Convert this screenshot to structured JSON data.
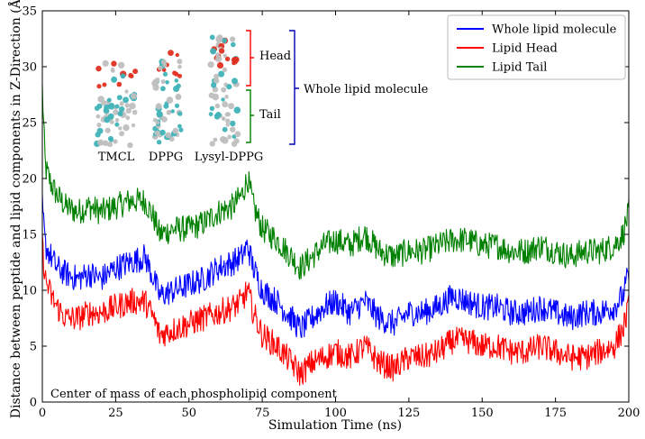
{
  "chart_data": {
    "type": "line",
    "title": "",
    "xlabel": "Simulation Time (ns)",
    "ylabel": "Distance between peptide and lipid components in Z-Direction (Å)",
    "xlim": [
      0,
      200
    ],
    "ylim": [
      0,
      35
    ],
    "xticks": [
      0,
      25,
      50,
      75,
      100,
      125,
      150,
      175,
      200
    ],
    "yticks": [
      0,
      5,
      10,
      15,
      20,
      25,
      30,
      35
    ],
    "legend_position": "top-right",
    "annotation": "Center of mass of each phospholipid component",
    "series": [
      {
        "name": "Whole lipid molecule",
        "color": "#0000ff",
        "x": [
          0,
          1,
          3,
          5,
          8,
          12,
          16,
          20,
          25,
          30,
          35,
          38,
          40,
          45,
          50,
          55,
          60,
          65,
          68,
          70,
          72,
          75,
          80,
          85,
          88,
          92,
          96,
          100,
          105,
          110,
          115,
          120,
          125,
          130,
          135,
          140,
          145,
          150,
          155,
          160,
          165,
          170,
          175,
          180,
          185,
          190,
          195,
          198,
          200
        ],
        "values": [
          17.5,
          14,
          13,
          12,
          11.5,
          11,
          11.5,
          11,
          12,
          12.5,
          13,
          11,
          9.5,
          10,
          10.5,
          11,
          12,
          12.5,
          13,
          14,
          12,
          10,
          9,
          7.5,
          6.5,
          7.5,
          8.5,
          9,
          8,
          9,
          7.5,
          7,
          8,
          8,
          8.5,
          9.5,
          9,
          8.5,
          8.5,
          8,
          8,
          8.5,
          8,
          7.5,
          8,
          8,
          8.5,
          9.5,
          11.5
        ]
      },
      {
        "name": "Lipid Head",
        "color": "#ff0000",
        "x": [
          0,
          1,
          3,
          5,
          8,
          12,
          16,
          20,
          25,
          30,
          35,
          38,
          40,
          45,
          50,
          55,
          60,
          65,
          68,
          70,
          72,
          75,
          80,
          85,
          88,
          92,
          96,
          100,
          105,
          110,
          115,
          120,
          125,
          130,
          135,
          140,
          145,
          150,
          155,
          160,
          165,
          170,
          175,
          180,
          185,
          190,
          195,
          198,
          200
        ],
        "values": [
          14,
          11,
          9.5,
          8.5,
          7.5,
          7.5,
          8,
          8,
          8.5,
          9,
          9,
          7.5,
          6,
          6.5,
          7,
          7.5,
          8,
          8.5,
          9,
          10,
          8,
          6,
          5,
          3.5,
          2.5,
          3.5,
          4,
          4.5,
          4,
          5,
          3.5,
          3,
          4,
          4,
          4.5,
          5.5,
          5.5,
          5,
          5,
          4.5,
          4.5,
          5,
          4.5,
          4,
          4,
          4.5,
          5,
          6.5,
          8.5
        ]
      },
      {
        "name": "Lipid Tail",
        "color": "#008000",
        "x": [
          0,
          1,
          3,
          5,
          8,
          12,
          16,
          20,
          25,
          30,
          35,
          38,
          40,
          45,
          50,
          55,
          60,
          65,
          68,
          70,
          72,
          75,
          80,
          85,
          88,
          92,
          96,
          100,
          105,
          110,
          115,
          120,
          125,
          130,
          135,
          140,
          145,
          150,
          155,
          160,
          165,
          170,
          175,
          180,
          185,
          190,
          195,
          198,
          200
        ],
        "values": [
          28,
          21,
          19.5,
          18.5,
          17.5,
          17,
          17.5,
          17,
          17.5,
          18,
          18,
          16.5,
          15,
          15.5,
          15.5,
          16,
          17,
          17.5,
          18.5,
          20,
          17.5,
          15.5,
          14.5,
          13,
          12,
          13,
          14,
          14.5,
          14,
          15,
          13.5,
          13,
          13.5,
          13.5,
          14,
          14.5,
          14.5,
          14,
          14,
          13.5,
          13.5,
          14,
          13.5,
          13,
          13.5,
          13.5,
          14,
          15,
          17
        ]
      }
    ],
    "inset": {
      "molecules": [
        "TMCL",
        "DPPG",
        "Lysyl-DPPG"
      ],
      "bracket_head": "Head",
      "bracket_tail": "Tail",
      "bracket_whole": "Whole lipid molecule",
      "colors": {
        "head": "#ff0000",
        "tail": "#008000",
        "whole": "#0000b0"
      }
    }
  }
}
